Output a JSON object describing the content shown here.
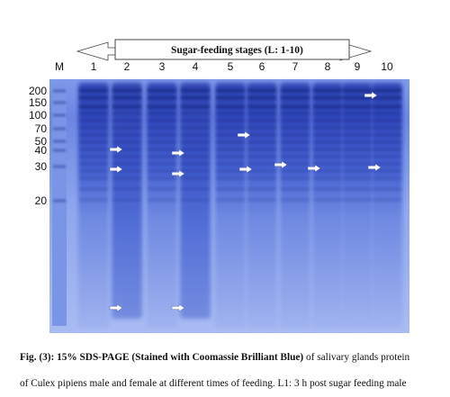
{
  "figure": {
    "header": {
      "text": "Sugar-feeding stages (L: 1-10)"
    },
    "lanes": [
      "M",
      "1",
      "2",
      "3",
      "4",
      "5",
      "6",
      "7",
      "8",
      "9",
      "10"
    ],
    "markers": [
      "200",
      "150",
      "100",
      "70",
      "50",
      "40",
      "30",
      "20"
    ],
    "colors": {
      "gel_light": "#8fa8ee",
      "gel_mid": "#4c6bd9",
      "gel_dark": "#2a3fb3",
      "band": "#223399",
      "arrow_fill": "#ffffff"
    }
  },
  "caption": {
    "bold_part": "Fig. (3): 15% SDS-PAGE (Stained with Coomassie Brilliant Blue)",
    "normal_part": " of salivary glands protein",
    "line2": "of Culex pipiens male and female at different times of feeding. L1: 3 h post sugar feeding male"
  }
}
